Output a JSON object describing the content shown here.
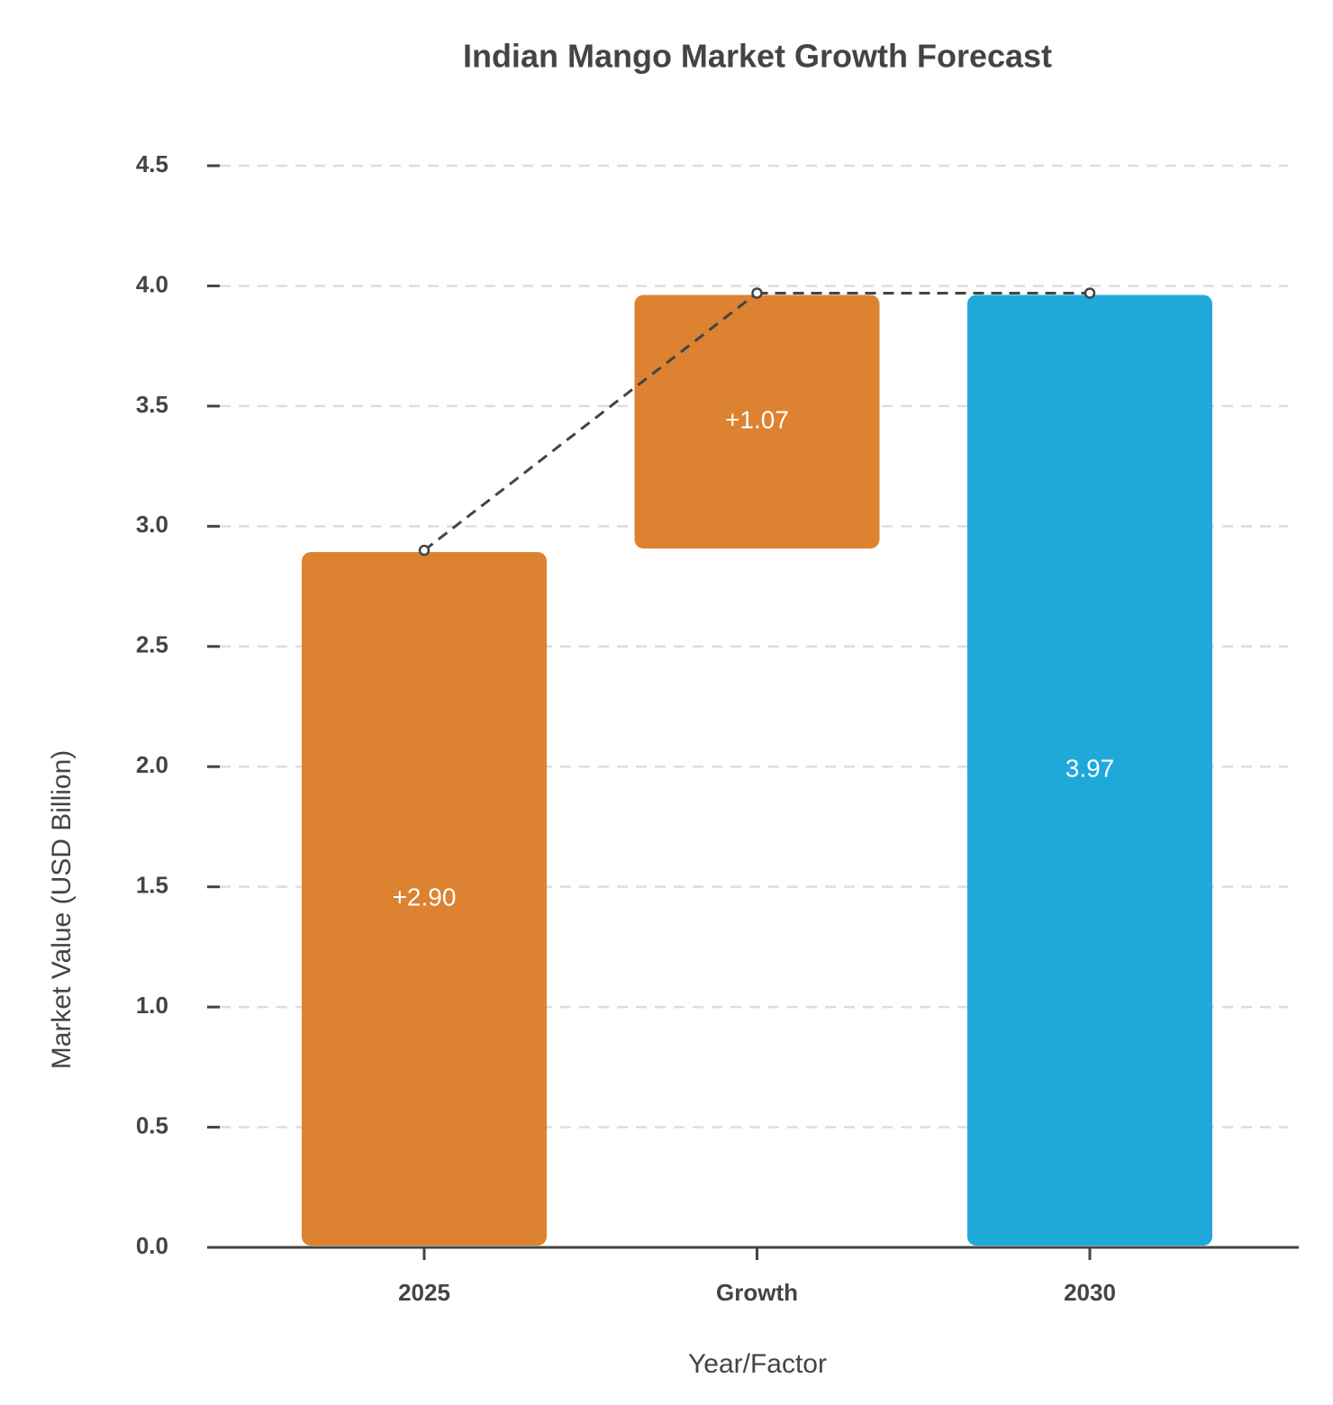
{
  "chart_data": {
    "type": "waterfall",
    "title": "Indian Mango Market Growth Forecast",
    "x_label": "Year/Factor",
    "y_label": "Market Value (USD Billion)",
    "categories": [
      "2025",
      "Growth",
      "2030"
    ],
    "values": [
      2.9,
      1.07,
      3.97
    ],
    "value_labels": [
      "+2.90",
      "+1.07",
      "3.97"
    ],
    "totals": [
      false,
      false,
      true
    ],
    "colors": [
      "#dc8231",
      "#dc8231",
      "#1fa9d9"
    ],
    "ylim": [
      0,
      4.5
    ],
    "yticks": [
      {
        "value": 0,
        "label": "0.0"
      },
      0.5,
      {
        "value": 1,
        "label": "1.0"
      },
      1.5,
      {
        "value": 2,
        "label": "2.0"
      },
      2.5,
      {
        "value": 3,
        "label": "3.0"
      },
      3.5,
      {
        "value": 4,
        "label": "4.0"
      },
      4.5
    ],
    "grid": true
  }
}
